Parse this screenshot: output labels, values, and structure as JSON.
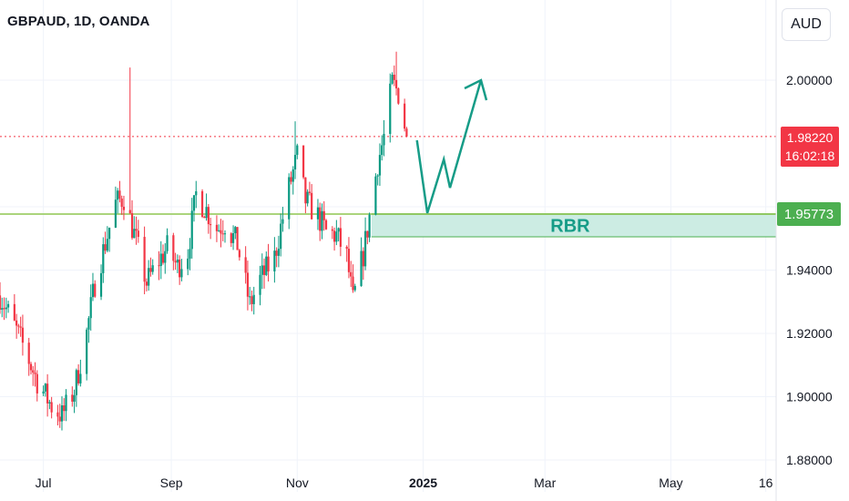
{
  "header": {
    "symbol": "GBPAUD, 1D, OANDA"
  },
  "scale": {
    "currency_label": "AUD"
  },
  "price_tags": {
    "last_price": "1.98220",
    "countdown": "16:02:18",
    "zone_price": "1.95773",
    "zone_price_hidden": "1.95800"
  },
  "annotation": {
    "zone_label": "RBR"
  },
  "colors": {
    "up": "#089981",
    "down": "#f23645",
    "zone_fill": "#ccece3",
    "zone_border": "#4caf50",
    "arrow": "#169c87",
    "last_price_line": "#f23645"
  },
  "chart_data": {
    "type": "candlestick",
    "title": "GBPAUD, 1D, OANDA",
    "y_axis": {
      "label": "AUD",
      "ylim": [
        1.877,
        2.011
      ],
      "ticks": [
        "1.88000",
        "1.90000",
        "1.92000",
        "1.94000",
        "1.96000",
        "2.00000"
      ]
    },
    "x_axis": {
      "ticks": [
        {
          "label": "Jul",
          "date": "2024-07-01"
        },
        {
          "label": "Sep",
          "date": "2024-09-01"
        },
        {
          "label": "Nov",
          "date": "2024-11-01"
        },
        {
          "label": "2025",
          "date": "2025-01-01",
          "bold": true
        },
        {
          "label": "Mar",
          "date": "2025-03-01"
        },
        {
          "label": "May",
          "date": "2025-05-01"
        },
        {
          "label": "16",
          "date": "2025-06-16"
        }
      ],
      "start": "2024-06-10",
      "end": "2025-06-21"
    },
    "last_price": 1.9822,
    "anchors": [
      [
        "2024-06-10",
        1.932
      ],
      [
        "2024-06-20",
        1.918
      ],
      [
        "2024-06-28",
        1.905
      ],
      [
        "2024-07-05",
        1.897
      ],
      [
        "2024-07-10",
        1.894
      ],
      [
        "2024-07-16",
        1.902
      ],
      [
        "2024-07-22",
        1.92
      ],
      [
        "2024-07-26",
        1.936
      ],
      [
        "2024-08-01",
        1.951
      ],
      [
        "2024-08-05",
        1.961
      ],
      [
        "2024-08-09",
        1.963
      ],
      [
        "2024-08-12",
        1.956
      ],
      [
        "2024-08-15",
        1.949
      ],
      [
        "2024-08-20",
        1.936
      ],
      [
        "2024-08-26",
        1.943
      ],
      [
        "2024-08-30",
        1.947
      ],
      [
        "2024-09-04",
        1.941
      ],
      [
        "2024-09-09",
        1.946
      ],
      [
        "2024-09-13",
        1.964
      ],
      [
        "2024-09-18",
        1.959
      ],
      [
        "2024-09-23",
        1.953
      ],
      [
        "2024-09-27",
        1.955
      ],
      [
        "2024-10-03",
        1.948
      ],
      [
        "2024-10-09",
        1.929
      ],
      [
        "2024-10-14",
        1.937
      ],
      [
        "2024-10-21",
        1.944
      ],
      [
        "2024-10-28",
        1.966
      ],
      [
        "2024-11-01",
        1.976
      ],
      [
        "2024-11-05",
        1.962
      ],
      [
        "2024-11-11",
        1.957
      ],
      [
        "2024-11-15",
        1.952
      ],
      [
        "2024-11-20",
        1.951
      ],
      [
        "2024-11-25",
        1.944
      ],
      [
        "2024-11-28",
        1.93
      ],
      [
        "2024-12-03",
        1.945
      ],
      [
        "2024-12-06",
        1.957
      ],
      [
        "2024-12-10",
        1.974
      ],
      [
        "2024-12-13",
        1.982
      ],
      [
        "2024-12-17",
        1.999
      ],
      [
        "2024-12-20",
        1.996
      ],
      [
        "2024-12-23",
        1.986
      ],
      [
        "2024-12-24",
        1.982
      ]
    ],
    "spikes": [
      {
        "date": "2024-08-12",
        "high": 2.004
      },
      {
        "date": "2024-10-31",
        "high": 1.987
      },
      {
        "date": "2024-12-19",
        "high": 2.009
      }
    ],
    "zone": {
      "label": "RBR",
      "start": "2024-12-07",
      "end": "2025-06-21",
      "top": 1.9577,
      "bottom": 1.9505
    },
    "horizontal_line": 1.9577,
    "projection": [
      [
        "2024-12-29",
        1.981
      ],
      [
        "2025-01-03",
        1.958
      ],
      [
        "2025-01-11",
        1.975
      ],
      [
        "2025-01-14",
        1.966
      ],
      [
        "2025-01-29",
        2.0
      ]
    ],
    "grid": true
  }
}
